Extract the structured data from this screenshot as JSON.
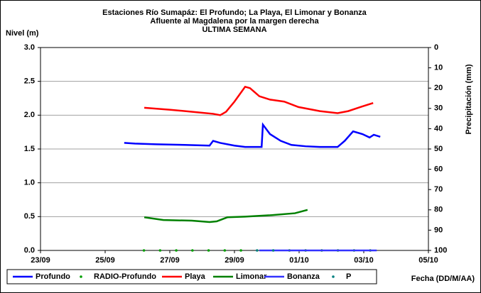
{
  "chart_data": {
    "type": "line",
    "title": "Estaciones Río Sumapáz: El Profundo; La Playa, El Limonar y Bonanza",
    "subtitle": "Afluente al Magdalena por la margen derecha",
    "subtitle2": "ULTIMA SEMANA",
    "ylabel": "Nivel (m)",
    "y2label": "Precipitación (mm)",
    "xlabel": "Fecha (DD/M/AA)",
    "xlim": [
      0,
      12
    ],
    "xticks": [
      {
        "value": 0,
        "label": "23/09"
      },
      {
        "value": 2,
        "label": "25/09"
      },
      {
        "value": 4,
        "label": "27/09"
      },
      {
        "value": 6,
        "label": "29/09"
      },
      {
        "value": 8,
        "label": "01/10"
      },
      {
        "value": 10,
        "label": "03/10"
      },
      {
        "value": 12,
        "label": "05/10"
      }
    ],
    "ylim": [
      0,
      3
    ],
    "yticks": [
      {
        "value": 0,
        "label": "0.0"
      },
      0.5,
      {
        "value": 1,
        "label": "1.0"
      },
      1.5,
      {
        "value": 2,
        "label": "2.0"
      },
      2.5,
      {
        "value": 3,
        "label": "3.0"
      }
    ],
    "y2lim": [
      100,
      0
    ],
    "y2ticks": [
      0,
      10,
      20,
      30,
      40,
      50,
      60,
      70,
      80,
      90,
      100
    ],
    "grid": true,
    "legend": "bottom",
    "series": [
      {
        "name": "Profundo",
        "color": "#0000ff",
        "style": "line",
        "x": [
          2.59,
          2.92,
          3.58,
          4.46,
          5.23,
          5.34,
          5.56,
          6.0,
          6.33,
          6.84,
          6.88,
          7.1,
          7.43,
          7.76,
          8.2,
          8.64,
          9.19,
          9.41,
          9.67,
          9.96,
          10.18,
          10.31,
          10.51
        ],
        "values": [
          1.59,
          1.58,
          1.57,
          1.56,
          1.55,
          1.62,
          1.59,
          1.55,
          1.53,
          1.53,
          1.86,
          1.72,
          1.62,
          1.56,
          1.54,
          1.53,
          1.53,
          1.62,
          1.76,
          1.72,
          1.67,
          1.71,
          1.68
        ]
      },
      {
        "name": "RADIO-Profundo",
        "color": "#00a000",
        "style": "dots",
        "x": [
          3.2,
          3.7,
          4.2,
          4.7,
          5.2,
          5.7,
          6.2,
          7.7,
          8.2,
          8.7,
          9.2,
          9.7,
          10.2
        ],
        "values": [
          0,
          0,
          0,
          0,
          0,
          0,
          0,
          0,
          0,
          0,
          0,
          0,
          0
        ]
      },
      {
        "name": "Playa",
        "color": "#ff0000",
        "style": "line",
        "x": [
          3.21,
          4.02,
          4.9,
          5.34,
          5.56,
          5.74,
          6.0,
          6.33,
          6.48,
          6.77,
          7.1,
          7.54,
          7.98,
          8.64,
          9.19,
          9.52,
          9.96,
          10.29
        ],
        "values": [
          2.11,
          2.08,
          2.04,
          2.02,
          2.0,
          2.05,
          2.2,
          2.42,
          2.4,
          2.28,
          2.23,
          2.2,
          2.12,
          2.06,
          2.03,
          2.06,
          2.13,
          2.18
        ]
      },
      {
        "name": "Limonar",
        "color": "#008000",
        "style": "line",
        "x": [
          3.21,
          3.8,
          4.68,
          5.23,
          5.45,
          5.78,
          6.33,
          7.1,
          7.87,
          8.26
        ],
        "values": [
          0.49,
          0.45,
          0.44,
          0.42,
          0.43,
          0.49,
          0.5,
          0.52,
          0.55,
          0.6
        ]
      },
      {
        "name": "Bonanza",
        "color": "#3333ff",
        "style": "line",
        "x": [
          6.77,
          10.4
        ],
        "values": [
          0,
          0
        ]
      },
      {
        "name": "P",
        "color": "#008080",
        "style": "dots",
        "axis": "y2",
        "x": [
          6.7,
          7.2
        ],
        "values": [
          100,
          100
        ]
      }
    ]
  }
}
